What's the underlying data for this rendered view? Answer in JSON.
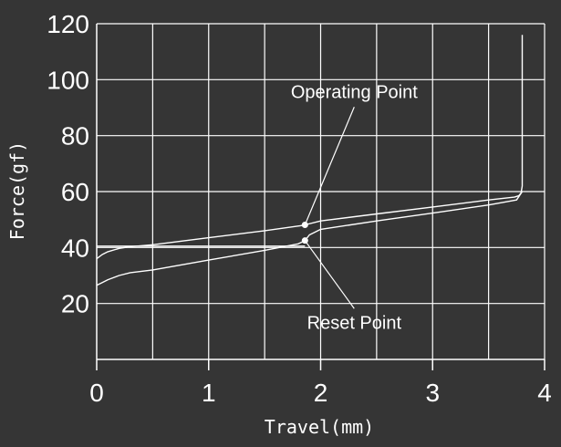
{
  "chart_data": {
    "type": "line",
    "xlabel": "Travel(mm)",
    "ylabel": "Force(gf)",
    "xlim": [
      0,
      4
    ],
    "ylim": [
      0,
      120
    ],
    "x_ticks": [
      "0",
      "1",
      "2",
      "3",
      "4"
    ],
    "y_ticks": [
      "20",
      "40",
      "60",
      "80",
      "100",
      "120"
    ],
    "grid": true,
    "colors": {
      "background": "#353535",
      "lines": "#ffffff"
    },
    "series": [
      {
        "x": [
          0,
          0.05,
          0.1,
          0.2,
          0.3,
          0.5,
          1.0,
          1.5,
          1.82,
          1.86,
          2.0,
          2.5,
          3.0,
          3.5,
          3.73,
          3.77,
          3.79,
          3.8,
          3.8
        ],
        "y": [
          36,
          37.5,
          38.5,
          39.7,
          40.3,
          41,
          43.5,
          46,
          47.8,
          48.1,
          49.5,
          52,
          54.5,
          57,
          58,
          58.5,
          59.5,
          62,
          116
        ]
      },
      {
        "x": [
          0,
          0.05,
          0.1,
          0.2,
          0.3,
          0.5,
          1.0,
          1.5,
          1.8,
          1.86,
          1.9,
          2.0,
          2.5,
          3.0,
          3.5,
          3.75,
          3.8
        ],
        "y": [
          26.5,
          27.5,
          28.5,
          30,
          31,
          32,
          35.5,
          39,
          41.3,
          42.5,
          44.5,
          46.5,
          49.5,
          52.3,
          55.2,
          57,
          60
        ]
      },
      {
        "x": [
          0,
          1.86
        ],
        "y": [
          40.5,
          40.5
        ]
      }
    ],
    "annotations": [
      {
        "text": "Operating Point",
        "x": 1.86,
        "y": 48.1,
        "label_x": 2.3,
        "label_y": 93.5
      },
      {
        "text": "Reset Point",
        "x": 1.86,
        "y": 42.5,
        "label_x": 2.3,
        "label_y": 11
      }
    ]
  }
}
